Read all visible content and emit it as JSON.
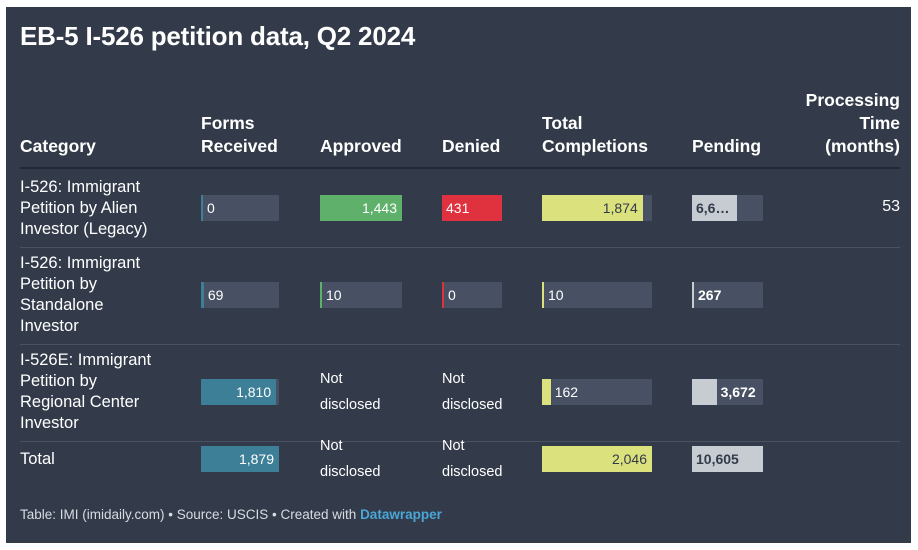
{
  "title": "EB-5 I-526 petition data, Q2 2024",
  "colors": {
    "background": "#333b4a",
    "bar_bg": "#485163",
    "received": "#3c7f97",
    "approved": "#5fb06a",
    "denied": "#e0313f",
    "completions": "#dbe17c",
    "pending": "#c7ccd2"
  },
  "columns": {
    "category": "Category",
    "forms_received": [
      "Forms",
      "Received"
    ],
    "approved": "Approved",
    "denied": "Denied",
    "total_completions": [
      "Total",
      "Completions"
    ],
    "pending": "Pending",
    "processing_time": [
      "Processing",
      "Time",
      "(months)"
    ]
  },
  "not_disclosed": [
    "Not",
    "disclosed"
  ],
  "chart_data": {
    "type": "table",
    "title": "EB-5 I-526 petition data, Q2 2024",
    "scale_max": {
      "forms_received": 1879,
      "approved": 1443,
      "denied": 431,
      "total_completions": 2046,
      "pending": 10605
    },
    "rows": [
      {
        "category": [
          "I-526: Immigrant",
          "Petition by Alien",
          "Investor (Legacy)"
        ],
        "forms_received": 0,
        "forms_received_label": "0",
        "approved": 1443,
        "approved_label": "1,443",
        "denied": 431,
        "denied_label": "431",
        "total_completions": 1874,
        "total_completions_label": "1,874",
        "pending": 6666,
        "pending_label": "6,6…",
        "processing_time": "53"
      },
      {
        "category": [
          "I-526: Immigrant",
          "Petition by",
          "Standalone",
          "Investor"
        ],
        "forms_received": 69,
        "forms_received_label": "69",
        "approved": 10,
        "approved_label": "10",
        "denied": 0,
        "denied_label": "0",
        "total_completions": 10,
        "total_completions_label": "10",
        "pending": 267,
        "pending_label": "267",
        "processing_time": ""
      },
      {
        "category": [
          "I-526E: Immigrant",
          "Petition by",
          "Regional Center",
          "Investor"
        ],
        "forms_received": 1810,
        "forms_received_label": "1,810",
        "approved": null,
        "approved_label": "",
        "denied": null,
        "denied_label": "",
        "total_completions": 162,
        "total_completions_label": "162",
        "pending": 3672,
        "pending_label": "3,672",
        "processing_time": ""
      },
      {
        "category": [
          "Total"
        ],
        "forms_received": 1879,
        "forms_received_label": "1,879",
        "approved": null,
        "approved_label": "",
        "denied": null,
        "denied_label": "",
        "total_completions": 2046,
        "total_completions_label": "2,046",
        "pending": 10605,
        "pending_label": "10,605",
        "processing_time": ""
      }
    ]
  },
  "footer": {
    "text": "Table: IMI (imidaily.com) • Source: USCIS • Created with ",
    "link": "Datawrapper"
  }
}
